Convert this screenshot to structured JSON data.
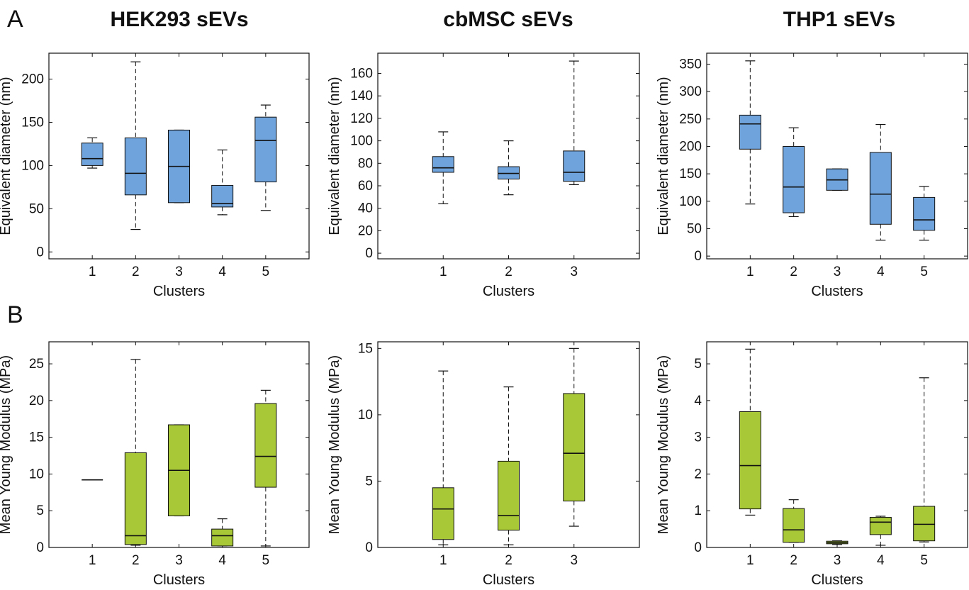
{
  "figure": {
    "panels": [
      "A",
      "B"
    ],
    "column_titles": [
      "HEK293 sEVs",
      "cbMSC sEVs",
      "THP1 sEVs"
    ]
  },
  "colors": {
    "diameter_box": "#6fa3dc",
    "modulus_box": "#a8c838"
  },
  "chart_data": [
    {
      "type": "box",
      "row": "A",
      "col": 0,
      "xlabel": "Clusters",
      "ylabel": "Equivalent diameter (nm)",
      "categories": [
        "1",
        "2",
        "3",
        "4",
        "5"
      ],
      "ylim": [
        -8,
        230
      ],
      "yticks": [
        0,
        50,
        100,
        150,
        200
      ],
      "boxes": [
        {
          "min": 97,
          "q1": 100,
          "median": 108,
          "q3": 126,
          "max": 132
        },
        {
          "min": 26,
          "q1": 66,
          "median": 91,
          "q3": 132,
          "max": 220
        },
        {
          "min": 57,
          "q1": 57,
          "median": 99,
          "q3": 141,
          "max": 141
        },
        {
          "min": 43,
          "q1": 52,
          "median": 56,
          "q3": 77,
          "max": 118
        },
        {
          "min": 48,
          "q1": 81,
          "median": 129,
          "q3": 156,
          "max": 170
        }
      ]
    },
    {
      "type": "box",
      "row": "A",
      "col": 1,
      "xlabel": "Clusters",
      "ylabel": "Equivalent diameter (nm)",
      "categories": [
        "1",
        "2",
        "3"
      ],
      "ylim": [
        -5,
        178
      ],
      "yticks": [
        0,
        20,
        40,
        60,
        80,
        100,
        120,
        140,
        160
      ],
      "boxes": [
        {
          "min": 44,
          "q1": 72,
          "median": 76,
          "q3": 86,
          "max": 108
        },
        {
          "min": 52,
          "q1": 66,
          "median": 71,
          "q3": 77,
          "max": 100
        },
        {
          "min": 61,
          "q1": 64,
          "median": 72,
          "q3": 91,
          "max": 171
        }
      ]
    },
    {
      "type": "box",
      "row": "A",
      "col": 2,
      "xlabel": "Clusters",
      "ylabel": "Equivalent diameter (nm)",
      "categories": [
        "1",
        "2",
        "3",
        "4",
        "5"
      ],
      "ylim": [
        -5,
        370
      ],
      "yticks": [
        0,
        50,
        100,
        150,
        200,
        250,
        300,
        350
      ],
      "boxes": [
        {
          "min": 95,
          "q1": 195,
          "median": 241,
          "q3": 257,
          "max": 356
        },
        {
          "min": 72,
          "q1": 79,
          "median": 126,
          "q3": 200,
          "max": 234
        },
        {
          "min": 120,
          "q1": 120,
          "median": 139,
          "q3": 159,
          "max": 159
        },
        {
          "min": 29,
          "q1": 58,
          "median": 113,
          "q3": 189,
          "max": 240
        },
        {
          "min": 29,
          "q1": 47,
          "median": 66,
          "q3": 107,
          "max": 127
        }
      ]
    },
    {
      "type": "box",
      "row": "B",
      "col": 0,
      "xlabel": "Clusters",
      "ylabel": "Mean Young Modulus (MPa)",
      "categories": [
        "1",
        "2",
        "3",
        "4",
        "5"
      ],
      "ylim": [
        0,
        28
      ],
      "yticks": [
        0,
        5,
        10,
        15,
        20,
        25
      ],
      "boxes": [
        {
          "min": 9.2,
          "q1": 9.2,
          "median": 9.2,
          "q3": 9.2,
          "max": 9.2
        },
        {
          "min": 0.3,
          "q1": 0.4,
          "median": 1.6,
          "q3": 12.9,
          "max": 25.6
        },
        {
          "min": 4.3,
          "q1": 4.3,
          "median": 10.5,
          "q3": 16.7,
          "max": 16.7
        },
        {
          "min": 0.2,
          "q1": 0.2,
          "median": 1.6,
          "q3": 2.5,
          "max": 3.9
        },
        {
          "min": 0.2,
          "q1": 8.2,
          "median": 12.4,
          "q3": 19.6,
          "max": 21.4
        }
      ]
    },
    {
      "type": "box",
      "row": "B",
      "col": 1,
      "xlabel": "Clusters",
      "ylabel": "Mean Young Modulus (MPa)",
      "categories": [
        "1",
        "2",
        "3"
      ],
      "ylim": [
        0,
        15.5
      ],
      "yticks": [
        0,
        5,
        10,
        15
      ],
      "boxes": [
        {
          "min": 0.2,
          "q1": 0.6,
          "median": 2.9,
          "q3": 4.5,
          "max": 13.3
        },
        {
          "min": 0.2,
          "q1": 1.3,
          "median": 2.4,
          "q3": 6.5,
          "max": 12.1
        },
        {
          "min": 1.6,
          "q1": 3.5,
          "median": 7.1,
          "q3": 11.6,
          "max": 15.0
        }
      ]
    },
    {
      "type": "box",
      "row": "B",
      "col": 2,
      "xlabel": "Clusters",
      "ylabel": "Mean Young Modulus (MPa)",
      "categories": [
        "1",
        "2",
        "3",
        "4",
        "5"
      ],
      "ylim": [
        0,
        5.6
      ],
      "yticks": [
        0,
        1,
        2,
        3,
        4,
        5
      ],
      "boxes": [
        {
          "min": 0.88,
          "q1": 1.05,
          "median": 2.23,
          "q3": 3.7,
          "max": 5.4
        },
        {
          "min": 0.14,
          "q1": 0.14,
          "median": 0.48,
          "q3": 1.06,
          "max": 1.3
        },
        {
          "min": 0.08,
          "q1": 0.1,
          "median": 0.13,
          "q3": 0.17,
          "max": 0.18
        },
        {
          "min": 0.06,
          "q1": 0.35,
          "median": 0.69,
          "q3": 0.82,
          "max": 0.85
        },
        {
          "min": 0.15,
          "q1": 0.18,
          "median": 0.63,
          "q3": 1.12,
          "max": 4.62
        }
      ]
    }
  ]
}
